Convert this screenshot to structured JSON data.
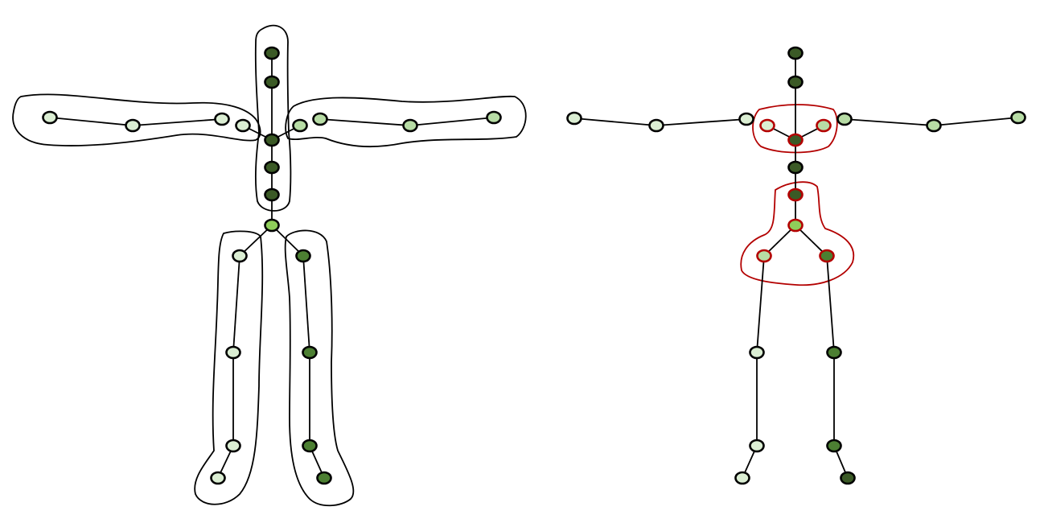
{
  "colors": {
    "background": "#ffffff",
    "stroke": "#000000",
    "red_outline": "#b30000",
    "very_light_green": "#dbeed3",
    "light_green": "#b7dca5",
    "lime_green": "#8fce5a",
    "mid_green": "#4c7f32",
    "dark_green": "#3b5a26"
  },
  "diagrams": [
    {
      "name": "left-skeleton-diagram",
      "description_id": "limb-groupings"
    },
    {
      "name": "right-skeleton-diagram",
      "description_id": "torso-groupings"
    }
  ]
}
